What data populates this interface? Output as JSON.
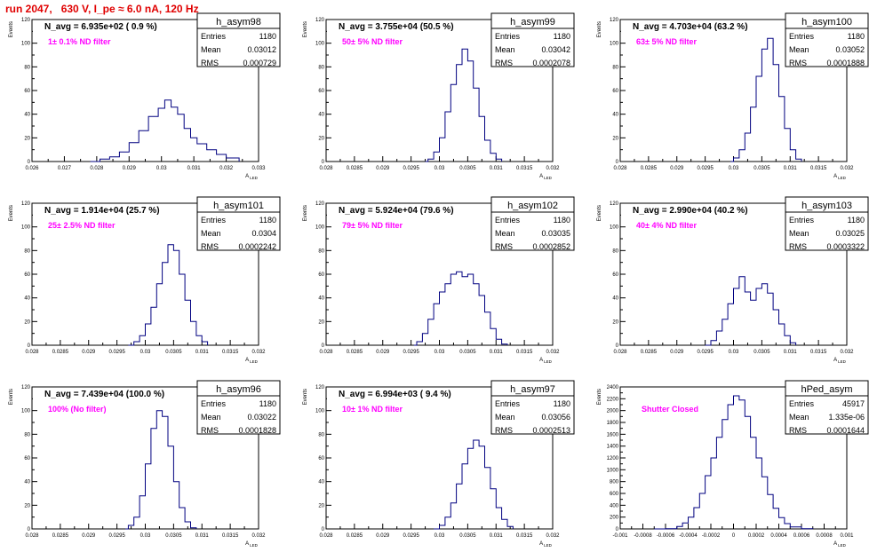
{
  "title": "run 2047,   630 V, I_pe ≈ 6.0 nA, 120 Hz",
  "colors": {
    "title": "#e00000",
    "histogram": "#000080",
    "annotation": "#ff00ff",
    "axes": "#000000"
  },
  "chart_data": [
    {
      "type": "histogram",
      "name": "h_asym98",
      "n_avg": "N_avg = 6.935e+02 ( 0.9 %)",
      "annotation": "1± 0.1% ND filter",
      "stats": {
        "Entries": "1180",
        "Mean": "0.03012",
        "RMS": "0.000729"
      },
      "xlabel": "A_LED",
      "ylabel": "Events",
      "xlim": [
        0.026,
        0.033
      ],
      "ylim": [
        0,
        120
      ],
      "xticks": [
        0.026,
        0.027,
        0.028,
        0.029,
        0.03,
        0.031,
        0.032,
        0.033
      ],
      "xtick_labels": [
        "0.026",
        "0.027",
        "0.028",
        "0.029",
        "0.03",
        "0.031",
        "0.032",
        "0.033"
      ],
      "yticks": [
        0,
        20,
        40,
        60,
        80,
        100,
        120
      ],
      "points": [
        [
          0.0278,
          0
        ],
        [
          0.0281,
          2
        ],
        [
          0.0284,
          4
        ],
        [
          0.0287,
          8
        ],
        [
          0.029,
          16
        ],
        [
          0.0293,
          26
        ],
        [
          0.0296,
          38
        ],
        [
          0.0299,
          45
        ],
        [
          0.0301,
          52
        ],
        [
          0.0303,
          46
        ],
        [
          0.0305,
          40
        ],
        [
          0.0307,
          28
        ],
        [
          0.0309,
          20
        ],
        [
          0.0311,
          15
        ],
        [
          0.0314,
          10
        ],
        [
          0.0317,
          6
        ],
        [
          0.032,
          3
        ],
        [
          0.0324,
          1
        ]
      ]
    },
    {
      "type": "histogram",
      "name": "h_asym99",
      "n_avg": "N_avg = 3.755e+04 (50.5 %)",
      "annotation": "50± 5% ND filter",
      "stats": {
        "Entries": "1180",
        "Mean": "0.03042",
        "RMS": "0.0002078"
      },
      "xlabel": "A_LED",
      "ylabel": "Events",
      "xlim": [
        0.028,
        0.032
      ],
      "ylim": [
        0,
        120
      ],
      "xticks": [
        0.028,
        0.0285,
        0.029,
        0.0295,
        0.03,
        0.0305,
        0.031,
        0.0315,
        0.032
      ],
      "xtick_labels": [
        "0.028",
        "0.0285",
        "0.029",
        "0.0295",
        "0.03",
        "0.0305",
        "0.031",
        "0.0315",
        "0.032"
      ],
      "yticks": [
        0,
        20,
        40,
        60,
        80,
        100,
        120
      ],
      "points": [
        [
          0.02975,
          0
        ],
        [
          0.0298,
          2
        ],
        [
          0.0299,
          8
        ],
        [
          0.03,
          20
        ],
        [
          0.0301,
          42
        ],
        [
          0.0302,
          65
        ],
        [
          0.0303,
          82
        ],
        [
          0.0304,
          95
        ],
        [
          0.0305,
          85
        ],
        [
          0.0306,
          62
        ],
        [
          0.0307,
          38
        ],
        [
          0.0308,
          18
        ],
        [
          0.0309,
          7
        ],
        [
          0.031,
          2
        ],
        [
          0.0311,
          0
        ]
      ]
    },
    {
      "type": "histogram",
      "name": "h_asym100",
      "n_avg": "N_avg = 4.703e+04 (63.2 %)",
      "annotation": "63± 5% ND filter",
      "stats": {
        "Entries": "1180",
        "Mean": "0.03052",
        "RMS": "0.0001888"
      },
      "xlabel": "A_LED",
      "ylabel": "Events",
      "xlim": [
        0.028,
        0.032
      ],
      "ylim": [
        0,
        120
      ],
      "xticks": [
        0.028,
        0.0285,
        0.029,
        0.0295,
        0.03,
        0.0305,
        0.031,
        0.0315,
        0.032
      ],
      "xtick_labels": [
        "0.028",
        "0.0285",
        "0.029",
        "0.0295",
        "0.03",
        "0.0305",
        "0.031",
        "0.0315",
        "0.032"
      ],
      "yticks": [
        0,
        20,
        40,
        60,
        80,
        100,
        120
      ],
      "points": [
        [
          0.02995,
          0
        ],
        [
          0.03,
          3
        ],
        [
          0.0301,
          10
        ],
        [
          0.0302,
          24
        ],
        [
          0.0303,
          46
        ],
        [
          0.0304,
          72
        ],
        [
          0.0305,
          95
        ],
        [
          0.0306,
          104
        ],
        [
          0.0307,
          82
        ],
        [
          0.0308,
          55
        ],
        [
          0.0309,
          28
        ],
        [
          0.031,
          10
        ],
        [
          0.0311,
          2
        ],
        [
          0.0312,
          0
        ]
      ]
    },
    {
      "type": "histogram",
      "name": "h_asym101",
      "n_avg": "N_avg = 1.914e+04 (25.7 %)",
      "annotation": "25± 2.5% ND filter",
      "stats": {
        "Entries": "1180",
        "Mean": "0.0304",
        "RMS": "0.0002242"
      },
      "xlabel": "A_LED",
      "ylabel": "Events",
      "xlim": [
        0.028,
        0.032
      ],
      "ylim": [
        0,
        120
      ],
      "xticks": [
        0.028,
        0.0285,
        0.029,
        0.0295,
        0.03,
        0.0305,
        0.031,
        0.0315,
        0.032
      ],
      "xtick_labels": [
        "0.028",
        "0.0285",
        "0.029",
        "0.0295",
        "0.03",
        "0.0305",
        "0.031",
        "0.0315",
        "0.032"
      ],
      "yticks": [
        0,
        20,
        40,
        60,
        80,
        100,
        120
      ],
      "points": [
        [
          0.0297,
          0
        ],
        [
          0.0298,
          3
        ],
        [
          0.0299,
          8
        ],
        [
          0.03,
          18
        ],
        [
          0.0301,
          32
        ],
        [
          0.0302,
          52
        ],
        [
          0.0303,
          70
        ],
        [
          0.0304,
          85
        ],
        [
          0.0305,
          80
        ],
        [
          0.0306,
          60
        ],
        [
          0.0307,
          38
        ],
        [
          0.0308,
          20
        ],
        [
          0.0309,
          8
        ],
        [
          0.031,
          3
        ],
        [
          0.0311,
          0
        ]
      ]
    },
    {
      "type": "histogram",
      "name": "h_asym102",
      "n_avg": "N_avg = 5.924e+04 (79.6 %)",
      "annotation": "79± 5% ND filter",
      "stats": {
        "Entries": "1180",
        "Mean": "0.03035",
        "RMS": "0.0002852"
      },
      "xlabel": "A_LED",
      "ylabel": "Events",
      "xlim": [
        0.028,
        0.032
      ],
      "ylim": [
        0,
        120
      ],
      "xticks": [
        0.028,
        0.0285,
        0.029,
        0.0295,
        0.03,
        0.0305,
        0.031,
        0.0315,
        0.032
      ],
      "xtick_labels": [
        "0.028",
        "0.0285",
        "0.029",
        "0.0295",
        "0.03",
        "0.0305",
        "0.031",
        "0.0315",
        "0.032"
      ],
      "yticks": [
        0,
        20,
        40,
        60,
        80,
        100,
        120
      ],
      "points": [
        [
          0.02955,
          0
        ],
        [
          0.0296,
          3
        ],
        [
          0.0297,
          10
        ],
        [
          0.0298,
          22
        ],
        [
          0.0299,
          35
        ],
        [
          0.03,
          45
        ],
        [
          0.0301,
          52
        ],
        [
          0.0302,
          60
        ],
        [
          0.0303,
          62
        ],
        [
          0.0304,
          58
        ],
        [
          0.0305,
          60
        ],
        [
          0.0306,
          52
        ],
        [
          0.0307,
          42
        ],
        [
          0.0308,
          28
        ],
        [
          0.0309,
          14
        ],
        [
          0.031,
          5
        ],
        [
          0.0311,
          1
        ],
        [
          0.0312,
          0
        ]
      ]
    },
    {
      "type": "histogram",
      "name": "h_asym103",
      "n_avg": "N_avg = 2.990e+04 (40.2 %)",
      "annotation": "40± 4% ND filter",
      "stats": {
        "Entries": "1180",
        "Mean": "0.03025",
        "RMS": "0.0003322"
      },
      "xlabel": "A_LED",
      "ylabel": "Events",
      "xlim": [
        0.028,
        0.032
      ],
      "ylim": [
        0,
        120
      ],
      "xticks": [
        0.028,
        0.0285,
        0.029,
        0.0295,
        0.03,
        0.0305,
        0.031,
        0.0315,
        0.032
      ],
      "xtick_labels": [
        "0.028",
        "0.0285",
        "0.029",
        "0.0295",
        "0.03",
        "0.0305",
        "0.031",
        "0.0315",
        "0.032"
      ],
      "yticks": [
        0,
        20,
        40,
        60,
        80,
        100,
        120
      ],
      "points": [
        [
          0.0295,
          0
        ],
        [
          0.0296,
          4
        ],
        [
          0.0297,
          12
        ],
        [
          0.0298,
          22
        ],
        [
          0.0299,
          35
        ],
        [
          0.03,
          48
        ],
        [
          0.0301,
          58
        ],
        [
          0.0302,
          45
        ],
        [
          0.0303,
          38
        ],
        [
          0.0304,
          48
        ],
        [
          0.0305,
          52
        ],
        [
          0.0306,
          44
        ],
        [
          0.0307,
          30
        ],
        [
          0.0308,
          18
        ],
        [
          0.0309,
          8
        ],
        [
          0.031,
          2
        ],
        [
          0.0311,
          0
        ]
      ]
    },
    {
      "type": "histogram",
      "name": "h_asym96",
      "n_avg": "N_avg = 7.439e+04 (100.0 %)",
      "annotation": "100% (No filter)",
      "stats": {
        "Entries": "1180",
        "Mean": "0.03022",
        "RMS": "0.0001828"
      },
      "xlabel": "A_LED",
      "ylabel": "Events",
      "xlim": [
        0.028,
        0.032
      ],
      "ylim": [
        0,
        120
      ],
      "xticks": [
        0.028,
        0.0285,
        0.029,
        0.0295,
        0.03,
        0.0305,
        0.031,
        0.0315,
        0.032
      ],
      "xtick_labels": [
        "0.028",
        "0.0285",
        "0.029",
        "0.0295",
        "0.03",
        "0.0305",
        "0.031",
        "0.0315",
        "0.032"
      ],
      "yticks": [
        0,
        20,
        40,
        60,
        80,
        100,
        120
      ],
      "points": [
        [
          0.02965,
          0
        ],
        [
          0.0297,
          3
        ],
        [
          0.0298,
          10
        ],
        [
          0.0299,
          28
        ],
        [
          0.03,
          55
        ],
        [
          0.0301,
          85
        ],
        [
          0.0302,
          100
        ],
        [
          0.0303,
          95
        ],
        [
          0.0304,
          70
        ],
        [
          0.0305,
          40
        ],
        [
          0.0306,
          18
        ],
        [
          0.0307,
          6
        ],
        [
          0.0308,
          1
        ],
        [
          0.0309,
          0
        ]
      ]
    },
    {
      "type": "histogram",
      "name": "h_asym97",
      "n_avg": "N_avg = 6.994e+03 ( 9.4 %)",
      "annotation": "10± 1% ND filter",
      "stats": {
        "Entries": "1180",
        "Mean": "0.03056",
        "RMS": "0.0002513"
      },
      "xlabel": "A_LED",
      "ylabel": "Events",
      "xlim": [
        0.028,
        0.032
      ],
      "ylim": [
        0,
        120
      ],
      "xticks": [
        0.028,
        0.0285,
        0.029,
        0.0295,
        0.03,
        0.0305,
        0.031,
        0.0315,
        0.032
      ],
      "xtick_labels": [
        "0.028",
        "0.0285",
        "0.029",
        "0.0295",
        "0.03",
        "0.0305",
        "0.031",
        "0.0315",
        "0.032"
      ],
      "yticks": [
        0,
        20,
        40,
        60,
        80,
        100,
        120
      ],
      "points": [
        [
          0.0299,
          0
        ],
        [
          0.03,
          3
        ],
        [
          0.0301,
          10
        ],
        [
          0.0302,
          22
        ],
        [
          0.0303,
          38
        ],
        [
          0.0304,
          55
        ],
        [
          0.0305,
          68
        ],
        [
          0.0306,
          75
        ],
        [
          0.0307,
          70
        ],
        [
          0.0308,
          52
        ],
        [
          0.0309,
          34
        ],
        [
          0.031,
          18
        ],
        [
          0.0311,
          8
        ],
        [
          0.0312,
          2
        ],
        [
          0.0313,
          0
        ]
      ]
    },
    {
      "type": "histogram",
      "name": "hPed_asym",
      "n_avg": "",
      "annotation": "Shutter Closed",
      "stats": {
        "Entries": "45917",
        "Mean": "1.335e-06",
        "RMS": "0.0001644"
      },
      "xlabel": "A_LED",
      "ylabel": "Events",
      "xlim": [
        -0.001,
        0.001
      ],
      "ylim": [
        0,
        2400
      ],
      "xticks": [
        -0.001,
        -0.0008,
        -0.0006,
        -0.0004,
        -0.0002,
        0,
        0.0002,
        0.0004,
        0.0006,
        0.0008,
        0.001
      ],
      "xtick_labels": [
        "-0.001",
        "-0.0008",
        "-0.0006",
        "-0.0004",
        "-0.0002",
        "0",
        "0.0002",
        "0.0004",
        "0.0006",
        "0.0008",
        "0.001"
      ],
      "yticks": [
        0,
        200,
        400,
        600,
        800,
        1000,
        1200,
        1400,
        1600,
        1800,
        2000,
        2200,
        2400
      ],
      "points": [
        [
          -0.0007,
          0
        ],
        [
          -0.0006,
          5
        ],
        [
          -0.0005,
          40
        ],
        [
          -0.00045,
          100
        ],
        [
          -0.0004,
          200
        ],
        [
          -0.00035,
          360
        ],
        [
          -0.0003,
          600
        ],
        [
          -0.00025,
          900
        ],
        [
          -0.0002,
          1200
        ],
        [
          -0.00015,
          1550
        ],
        [
          -0.0001,
          1850
        ],
        [
          -5e-05,
          2100
        ],
        [
          0,
          2250
        ],
        [
          5e-05,
          2180
        ],
        [
          0.0001,
          1900
        ],
        [
          0.00015,
          1550
        ],
        [
          0.0002,
          1200
        ],
        [
          0.00025,
          880
        ],
        [
          0.0003,
          580
        ],
        [
          0.00035,
          350
        ],
        [
          0.0004,
          190
        ],
        [
          0.00045,
          90
        ],
        [
          0.0005,
          35
        ],
        [
          0.0006,
          5
        ],
        [
          0.0007,
          0
        ]
      ]
    }
  ]
}
